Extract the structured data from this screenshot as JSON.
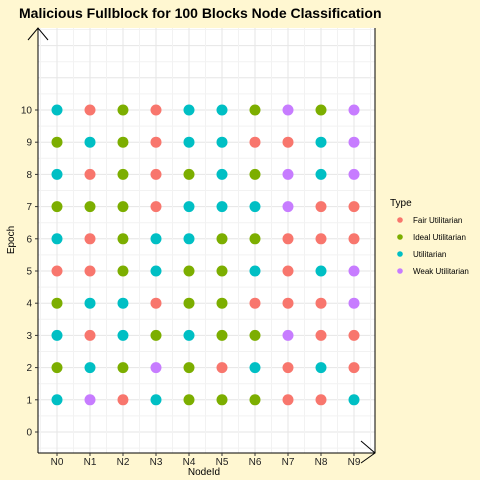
{
  "chart_data": {
    "type": "scatter",
    "title": "Malicious Fullblock for 100 Blocks Node Classification",
    "xlabel": "NodeId",
    "ylabel": "Epoch",
    "categories": [
      "N0",
      "N1",
      "N2",
      "N3",
      "N4",
      "N5",
      "N6",
      "N7",
      "N8",
      "N9"
    ],
    "y_ticks": [
      0,
      1,
      2,
      3,
      4,
      5,
      6,
      7,
      8,
      9,
      10
    ],
    "ylim": [
      -0.5,
      12.5
    ],
    "grid": true,
    "legend": {
      "title": "Type",
      "placement": "right",
      "entries": [
        {
          "name": "Fair Utilitarian",
          "color": "#f8766d"
        },
        {
          "name": "Ideal Utilitarian",
          "color": "#7cae00"
        },
        {
          "name": "Utilitarian",
          "color": "#00bfc4"
        },
        {
          "name": "Weak Utilitarian",
          "color": "#c77cff"
        }
      ]
    },
    "series": [
      {
        "epoch": 10,
        "types": [
          "Utilitarian",
          "Fair Utilitarian",
          "Ideal Utilitarian",
          "Fair Utilitarian",
          "Utilitarian",
          "Utilitarian",
          "Ideal Utilitarian",
          "Weak Utilitarian",
          "Ideal Utilitarian",
          "Weak Utilitarian"
        ]
      },
      {
        "epoch": 9,
        "types": [
          "Ideal Utilitarian",
          "Utilitarian",
          "Ideal Utilitarian",
          "Fair Utilitarian",
          "Utilitarian",
          "Utilitarian",
          "Fair Utilitarian",
          "Fair Utilitarian",
          "Utilitarian",
          "Weak Utilitarian"
        ]
      },
      {
        "epoch": 8,
        "types": [
          "Utilitarian",
          "Fair Utilitarian",
          "Ideal Utilitarian",
          "Fair Utilitarian",
          "Ideal Utilitarian",
          "Utilitarian",
          "Ideal Utilitarian",
          "Weak Utilitarian",
          "Utilitarian",
          "Weak Utilitarian"
        ]
      },
      {
        "epoch": 7,
        "types": [
          "Ideal Utilitarian",
          "Ideal Utilitarian",
          "Ideal Utilitarian",
          "Fair Utilitarian",
          "Utilitarian",
          "Utilitarian",
          "Utilitarian",
          "Weak Utilitarian",
          "Fair Utilitarian",
          "Fair Utilitarian"
        ]
      },
      {
        "epoch": 6,
        "types": [
          "Utilitarian",
          "Fair Utilitarian",
          "Ideal Utilitarian",
          "Utilitarian",
          "Utilitarian",
          "Ideal Utilitarian",
          "Ideal Utilitarian",
          "Fair Utilitarian",
          "Fair Utilitarian",
          "Fair Utilitarian"
        ]
      },
      {
        "epoch": 5,
        "types": [
          "Fair Utilitarian",
          "Fair Utilitarian",
          "Ideal Utilitarian",
          "Utilitarian",
          "Ideal Utilitarian",
          "Ideal Utilitarian",
          "Utilitarian",
          "Fair Utilitarian",
          "Utilitarian",
          "Weak Utilitarian"
        ]
      },
      {
        "epoch": 4,
        "types": [
          "Ideal Utilitarian",
          "Utilitarian",
          "Utilitarian",
          "Fair Utilitarian",
          "Ideal Utilitarian",
          "Ideal Utilitarian",
          "Fair Utilitarian",
          "Fair Utilitarian",
          "Fair Utilitarian",
          "Weak Utilitarian"
        ]
      },
      {
        "epoch": 3,
        "types": [
          "Utilitarian",
          "Fair Utilitarian",
          "Utilitarian",
          "Ideal Utilitarian",
          "Utilitarian",
          "Ideal Utilitarian",
          "Ideal Utilitarian",
          "Weak Utilitarian",
          "Fair Utilitarian",
          "Fair Utilitarian"
        ]
      },
      {
        "epoch": 2,
        "types": [
          "Ideal Utilitarian",
          "Utilitarian",
          "Ideal Utilitarian",
          "Weak Utilitarian",
          "Ideal Utilitarian",
          "Fair Utilitarian",
          "Utilitarian",
          "Fair Utilitarian",
          "Utilitarian",
          "Fair Utilitarian"
        ]
      },
      {
        "epoch": 1,
        "types": [
          "Utilitarian",
          "Weak Utilitarian",
          "Fair Utilitarian",
          "Utilitarian",
          "Ideal Utilitarian",
          "Ideal Utilitarian",
          "Ideal Utilitarian",
          "Fair Utilitarian",
          "Fair Utilitarian",
          "Utilitarian"
        ]
      }
    ]
  }
}
